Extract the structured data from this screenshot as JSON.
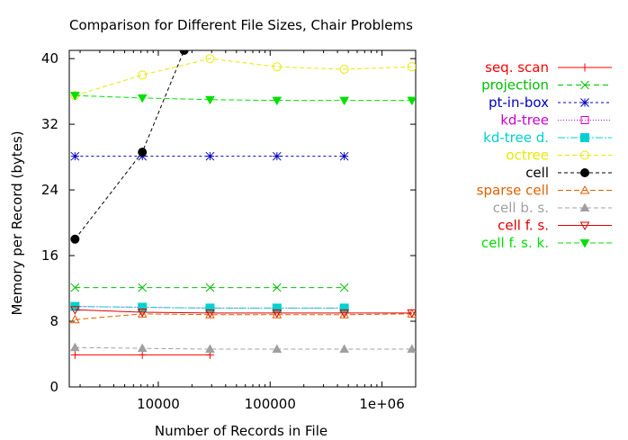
{
  "chart_data": {
    "type": "line",
    "title": "Comparison for Different File Sizes, Chair Problems",
    "xlabel": "Number of Records in File",
    "ylabel": "Memory per Record (bytes)",
    "xscale": "log",
    "xlim": [
      1600,
      2000000
    ],
    "ylim": [
      0,
      41
    ],
    "yticks": [
      0,
      8,
      16,
      24,
      32,
      40
    ],
    "yticklabels": [
      "0",
      "8",
      "16",
      "24",
      "32",
      "40"
    ],
    "xticks": [
      10000,
      100000,
      1000000
    ],
    "xticklabels": [
      "10000",
      "100000",
      "1e+06"
    ],
    "legend_position": "outside-right",
    "series": [
      {
        "name": "seq. scan",
        "color": "#ff0000",
        "marker": "plus",
        "dash": "",
        "x": [
          1800,
          7200,
          29000
        ],
        "y": [
          3.9,
          3.9,
          3.9
        ]
      },
      {
        "name": "projection",
        "color": "#00c000",
        "marker": "cross",
        "dash": "6,4",
        "x": [
          1800,
          7200,
          29000,
          115000,
          460000
        ],
        "y": [
          12.1,
          12.1,
          12.1,
          12.1,
          12.1
        ]
      },
      {
        "name": "pt-in-box",
        "color": "#0000c0",
        "marker": "star",
        "dash": "3,3",
        "x": [
          1800,
          7200,
          29000,
          115000,
          460000
        ],
        "y": [
          28.1,
          28.1,
          28.1,
          28.1,
          28.1
        ]
      },
      {
        "name": "kd-tree",
        "color": "#cc00cc",
        "marker": "square-open",
        "dash": "1,2",
        "x": [
          1800,
          7200,
          29000,
          115000,
          460000
        ],
        "y": [
          9.8,
          9.7,
          9.6,
          9.6,
          9.6
        ]
      },
      {
        "name": "kd-tree d.",
        "color": "#00d0d0",
        "marker": "square-filled",
        "dash": "8,2,2,2",
        "x": [
          1800,
          7200,
          29000,
          115000,
          460000
        ],
        "y": [
          9.8,
          9.7,
          9.6,
          9.6,
          9.6
        ]
      },
      {
        "name": "octree",
        "color": "#e8e800",
        "marker": "circle-open",
        "dash": "5,3",
        "x": [
          1800,
          7200,
          29000,
          115000,
          460000,
          1850000
        ],
        "y": [
          35.5,
          38.0,
          40.0,
          39.0,
          38.7,
          39.0
        ]
      },
      {
        "name": "cell",
        "color": "#000000",
        "marker": "circle-filled",
        "dash": "4,3",
        "x": [
          1800,
          7200,
          17000
        ],
        "y": [
          18.0,
          28.6,
          41.0
        ]
      },
      {
        "name": "sparse cell",
        "color": "#e06000",
        "marker": "triangle-open",
        "dash": "6,3",
        "x": [
          1800,
          7200,
          29000,
          115000,
          460000,
          1850000
        ],
        "y": [
          8.2,
          8.9,
          8.8,
          8.8,
          8.8,
          8.9
        ]
      },
      {
        "name": "cell b. s.",
        "color": "#a0a0a0",
        "marker": "triangle-filled",
        "dash": "5,3",
        "x": [
          1800,
          7200,
          29000,
          115000,
          460000,
          1850000
        ],
        "y": [
          4.8,
          4.7,
          4.6,
          4.6,
          4.6,
          4.6
        ]
      },
      {
        "name": "cell f. s.",
        "color": "#dd0000",
        "marker": "triangle-down-open",
        "dash": "",
        "x": [
          1800,
          7200,
          29000,
          115000,
          460000,
          1850000
        ],
        "y": [
          9.4,
          9.1,
          9.0,
          9.0,
          9.0,
          9.0
        ]
      },
      {
        "name": "cell f. s. k.",
        "color": "#00e000",
        "marker": "triangle-down-filled",
        "dash": "6,3",
        "x": [
          1800,
          7200,
          29000,
          115000,
          460000,
          1850000
        ],
        "y": [
          35.5,
          35.2,
          35.0,
          34.9,
          34.9,
          34.9
        ]
      }
    ]
  }
}
